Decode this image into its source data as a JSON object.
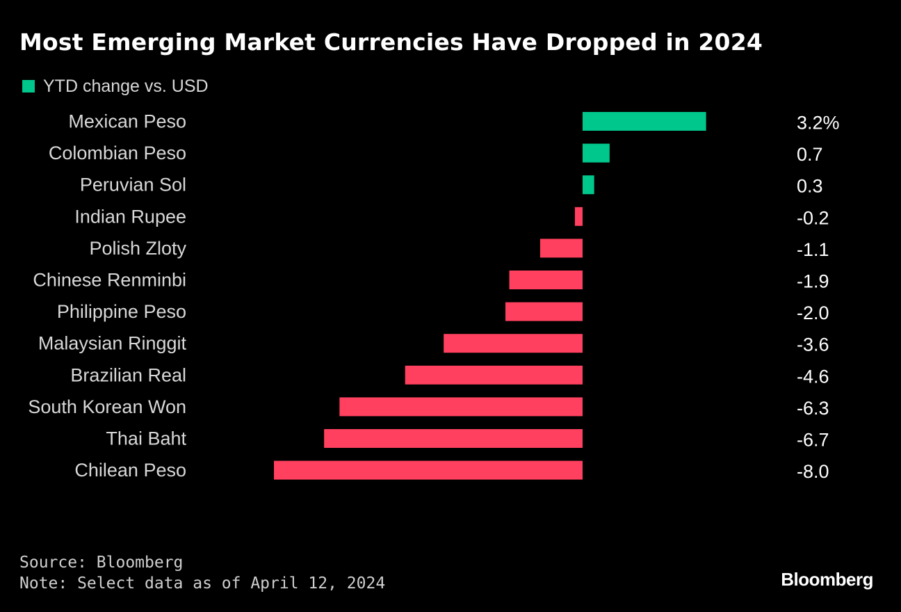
{
  "title": "Most Emerging Market Currencies Have Dropped in 2024",
  "legend": {
    "label": "YTD change vs. USD",
    "color": "#00c88c"
  },
  "colors": {
    "positive": "#00c88c",
    "negative": "#ff405f",
    "background": "#000000"
  },
  "chart_data": {
    "type": "bar",
    "orientation": "horizontal",
    "title": "Most Emerging Market Currencies Have Dropped in 2024",
    "xlabel": "",
    "ylabel": "",
    "series": [
      {
        "name": "YTD change vs. USD",
        "values": [
          3.2,
          0.7,
          0.3,
          -0.2,
          -1.1,
          -1.9,
          -2.0,
          -3.6,
          -4.6,
          -6.3,
          -6.7,
          -8.0
        ]
      }
    ],
    "categories": [
      "Mexican Peso",
      "Colombian Peso",
      "Peruvian Sol",
      "Indian Rupee",
      "Polish Zloty",
      "Chinese Renminbi",
      "Philippine Peso",
      "Malaysian Ringgit",
      "Brazilian Real",
      "South Korean Won",
      "Thai Baht",
      "Chilean Peso"
    ],
    "value_labels": [
      "3.2%",
      "0.7",
      "0.3",
      "-0.2",
      "-1.1",
      "-1.9",
      "-2.0",
      "-3.6",
      "-4.6",
      "-6.3",
      "-6.7",
      "-8.0"
    ],
    "xlim": [
      -8.0,
      3.2
    ],
    "grid": false,
    "legend_position": "top-left"
  },
  "footer": {
    "source": "Source: Bloomberg",
    "note": "Note: Select data as of April 12, 2024"
  },
  "brand": "Bloomberg"
}
